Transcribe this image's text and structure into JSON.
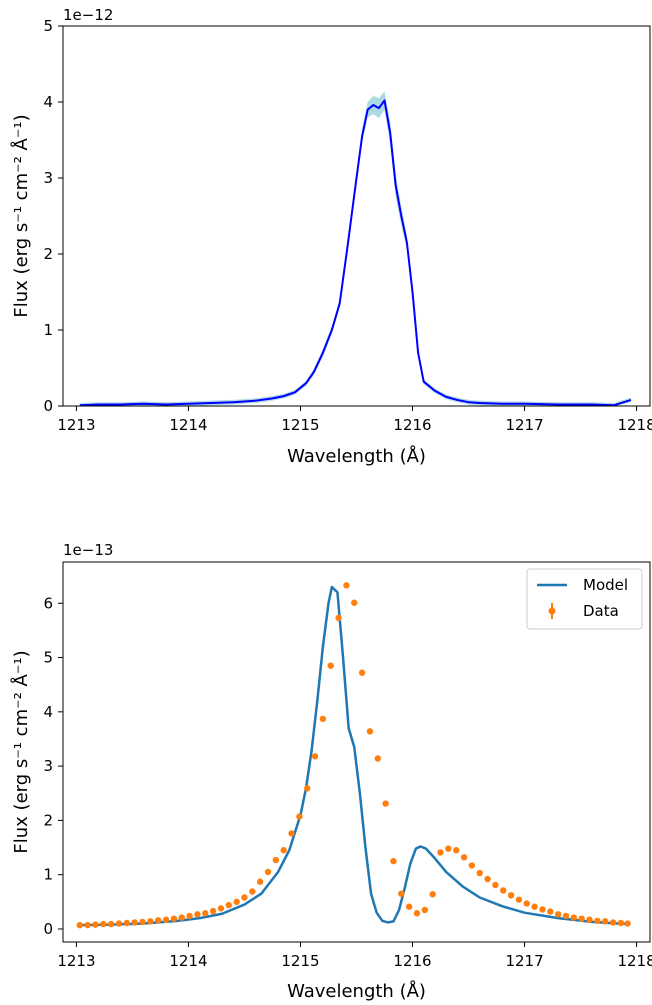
{
  "chart_data": [
    {
      "type": "line",
      "xlabel": "Wavelength (Å)",
      "ylabel": "Flux (erg s⁻¹ cm⁻² Å⁻¹)",
      "offset_label": "1e−12",
      "xlim": [
        1212.88,
        1218.12
      ],
      "ylim": [
        0,
        5
      ],
      "xticks": [
        1213,
        1214,
        1215,
        1216,
        1217,
        1218
      ],
      "xtick_labels": [
        "1213",
        "1214",
        "1215",
        "1216",
        "1217",
        "1218"
      ],
      "yticks": [
        0,
        1,
        2,
        3,
        4,
        5
      ],
      "ytick_labels": [
        "0",
        "1",
        "2",
        "3",
        "4",
        "5"
      ],
      "colors": {
        "line": "#0000ff",
        "band": "#add8e6"
      },
      "series": [
        {
          "x": [
            1213.03,
            1213.2,
            1213.4,
            1213.6,
            1213.8,
            1214.0,
            1214.2,
            1214.4,
            1214.6,
            1214.75,
            1214.85,
            1214.95,
            1215.05,
            1215.12,
            1215.2,
            1215.28,
            1215.35,
            1215.42,
            1215.5,
            1215.55,
            1215.6,
            1215.65,
            1215.7,
            1215.75,
            1215.8,
            1215.85,
            1215.9,
            1215.95,
            1216.0,
            1216.05,
            1216.1,
            1216.2,
            1216.3,
            1216.4,
            1216.5,
            1216.6,
            1216.8,
            1217.0,
            1217.3,
            1217.6,
            1217.8,
            1217.95
          ],
          "y": [
            0.01,
            0.02,
            0.02,
            0.03,
            0.02,
            0.03,
            0.04,
            0.05,
            0.07,
            0.1,
            0.13,
            0.18,
            0.3,
            0.45,
            0.7,
            1.0,
            1.35,
            2.1,
            3.0,
            3.55,
            3.9,
            3.96,
            3.92,
            4.02,
            3.6,
            2.9,
            2.5,
            2.15,
            1.5,
            0.7,
            0.32,
            0.2,
            0.12,
            0.08,
            0.05,
            0.04,
            0.03,
            0.03,
            0.02,
            0.02,
            0.01,
            0.08
          ],
          "y_upper": [
            0.04,
            0.05,
            0.05,
            0.06,
            0.05,
            0.06,
            0.07,
            0.08,
            0.1,
            0.13,
            0.16,
            0.21,
            0.33,
            0.49,
            0.75,
            1.05,
            1.41,
            2.18,
            3.08,
            3.64,
            4.0,
            4.08,
            4.05,
            4.14,
            3.75,
            3.05,
            2.62,
            2.24,
            1.56,
            0.74,
            0.35,
            0.23,
            0.15,
            0.11,
            0.08,
            0.07,
            0.06,
            0.06,
            0.05,
            0.05,
            0.04,
            0.11
          ],
          "y_lower": [
            0.0,
            0.0,
            0.0,
            0.0,
            0.0,
            0.0,
            0.01,
            0.02,
            0.04,
            0.07,
            0.1,
            0.15,
            0.27,
            0.41,
            0.65,
            0.95,
            1.29,
            2.02,
            2.92,
            3.46,
            3.8,
            3.84,
            3.79,
            3.9,
            3.45,
            2.75,
            2.38,
            2.06,
            1.44,
            0.66,
            0.29,
            0.17,
            0.09,
            0.05,
            0.02,
            0.01,
            0.0,
            0.0,
            0.0,
            0.0,
            0.0,
            0.05
          ]
        }
      ]
    },
    {
      "type": "scatter",
      "xlabel": "Wavelength (Å)",
      "ylabel": "Flux (erg s⁻¹ cm⁻² Å⁻¹)",
      "offset_label": "1e−13",
      "xlim": [
        1212.88,
        1218.12
      ],
      "ylim": [
        -0.24,
        6.76
      ],
      "xticks": [
        1213,
        1214,
        1215,
        1216,
        1217,
        1218
      ],
      "xtick_labels": [
        "1213",
        "1214",
        "1215",
        "1216",
        "1217",
        "1218"
      ],
      "yticks": [
        0,
        1,
        2,
        3,
        4,
        5,
        6
      ],
      "ytick_labels": [
        "0",
        "1",
        "2",
        "3",
        "4",
        "5",
        "6"
      ],
      "legend": {
        "position": "top-right",
        "entries": [
          "Model",
          "Data"
        ]
      },
      "colors": {
        "model": "#1f77b4",
        "data": "#ff7f0e"
      },
      "model": {
        "name": "Model",
        "x": [
          1213.03,
          1213.3,
          1213.6,
          1213.9,
          1214.1,
          1214.3,
          1214.5,
          1214.65,
          1214.8,
          1214.9,
          1215.0,
          1215.05,
          1215.1,
          1215.15,
          1215.2,
          1215.25,
          1215.28,
          1215.33,
          1215.38,
          1215.43,
          1215.48,
          1215.53,
          1215.58,
          1215.63,
          1215.68,
          1215.73,
          1215.78,
          1215.83,
          1215.88,
          1215.93,
          1215.98,
          1216.03,
          1216.07,
          1216.12,
          1216.2,
          1216.3,
          1216.45,
          1216.6,
          1216.8,
          1217.0,
          1217.3,
          1217.6,
          1217.92
        ],
        "y": [
          0.07,
          0.08,
          0.1,
          0.15,
          0.2,
          0.28,
          0.45,
          0.65,
          1.05,
          1.45,
          2.1,
          2.6,
          3.3,
          4.2,
          5.2,
          6.0,
          6.3,
          6.2,
          5.0,
          3.7,
          3.35,
          2.5,
          1.5,
          0.65,
          0.3,
          0.15,
          0.12,
          0.14,
          0.35,
          0.75,
          1.2,
          1.48,
          1.52,
          1.48,
          1.3,
          1.05,
          0.78,
          0.58,
          0.42,
          0.3,
          0.2,
          0.13,
          0.09
        ]
      },
      "data": {
        "name": "Data",
        "x": [
          1213.03,
          1213.1,
          1213.17,
          1213.24,
          1213.31,
          1213.38,
          1213.45,
          1213.52,
          1213.59,
          1213.66,
          1213.73,
          1213.8,
          1213.87,
          1213.94,
          1214.01,
          1214.08,
          1214.15,
          1214.22,
          1214.29,
          1214.36,
          1214.43,
          1214.5,
          1214.57,
          1214.64,
          1214.71,
          1214.78,
          1214.85,
          1214.92,
          1214.99,
          1215.06,
          1215.13,
          1215.2,
          1215.27,
          1215.34,
          1215.41,
          1215.48,
          1215.55,
          1215.62,
          1215.69,
          1215.76,
          1215.83,
          1215.9,
          1215.97,
          1216.04,
          1216.11,
          1216.18,
          1216.25,
          1216.32,
          1216.39,
          1216.46,
          1216.53,
          1216.6,
          1216.67,
          1216.74,
          1216.81,
          1216.88,
          1216.95,
          1217.02,
          1217.09,
          1217.16,
          1217.23,
          1217.3,
          1217.37,
          1217.44,
          1217.51,
          1217.58,
          1217.65,
          1217.72,
          1217.79,
          1217.86,
          1217.92
        ],
        "y": [
          0.07,
          0.07,
          0.08,
          0.09,
          0.09,
          0.1,
          0.11,
          0.12,
          0.13,
          0.14,
          0.16,
          0.17,
          0.19,
          0.21,
          0.24,
          0.27,
          0.29,
          0.33,
          0.38,
          0.44,
          0.5,
          0.58,
          0.69,
          0.87,
          1.05,
          1.27,
          1.45,
          1.76,
          2.07,
          2.59,
          3.18,
          3.87,
          4.85,
          5.73,
          6.33,
          6.01,
          4.72,
          3.64,
          3.14,
          2.31,
          1.25,
          0.65,
          0.41,
          0.29,
          0.35,
          0.64,
          1.41,
          1.48,
          1.45,
          1.32,
          1.17,
          1.03,
          0.92,
          0.81,
          0.71,
          0.62,
          0.54,
          0.47,
          0.41,
          0.36,
          0.32,
          0.27,
          0.24,
          0.21,
          0.19,
          0.17,
          0.15,
          0.14,
          0.12,
          0.11,
          0.1
        ]
      }
    }
  ]
}
